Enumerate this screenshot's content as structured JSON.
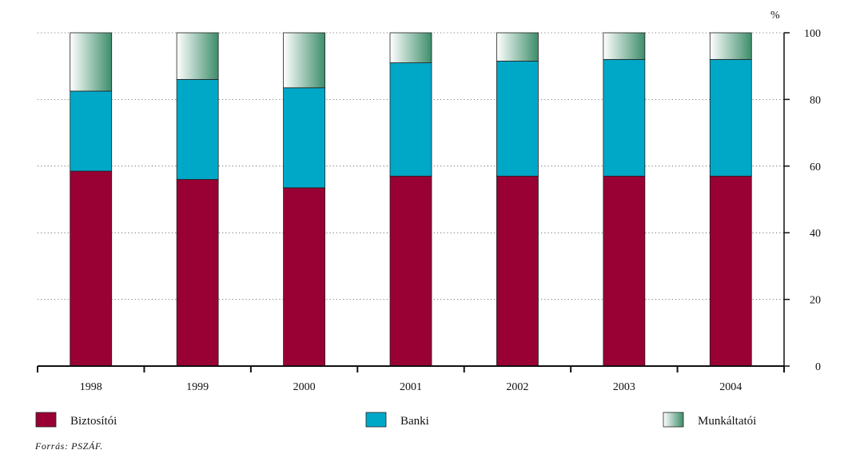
{
  "chart_data": {
    "type": "bar",
    "stacked": true,
    "categories": [
      "1998",
      "1999",
      "2000",
      "2001",
      "2002",
      "2003",
      "2004"
    ],
    "series": [
      {
        "name": "Biztosítói",
        "values": [
          58.5,
          56,
          53.5,
          57,
          57,
          57,
          57
        ],
        "color": "#990033"
      },
      {
        "name": "Banki",
        "values": [
          24,
          30,
          30,
          34,
          34.5,
          35,
          35
        ],
        "color": "#00a8c8"
      },
      {
        "name": "Munkáltatói",
        "values": [
          17.5,
          14,
          16.5,
          9,
          8.5,
          8,
          8
        ],
        "color": "#3d8d6a"
      }
    ],
    "yticks": [
      0,
      20,
      40,
      60,
      80,
      100
    ],
    "ylim": [
      0,
      100
    ],
    "yunit": "%",
    "grid": true,
    "legend": "bottom"
  },
  "source": "Forrás: PSZÁF."
}
